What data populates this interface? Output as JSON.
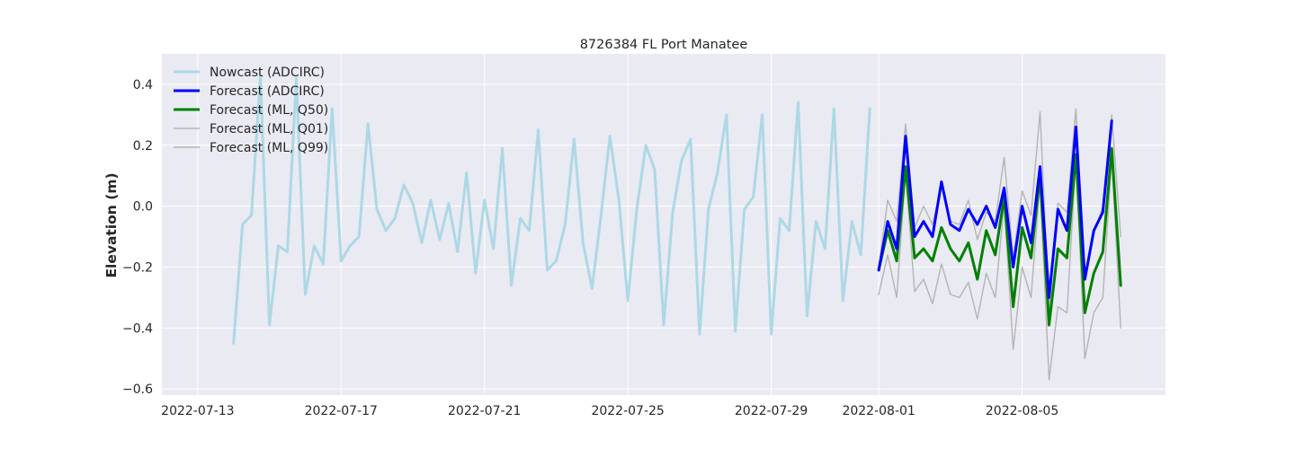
{
  "chart_data": {
    "type": "line",
    "title": "8726384 FL Port Manatee",
    "xlabel": "",
    "ylabel": "Elevation (m)",
    "xlim": [
      "2022-07-12T00:00",
      "2022-08-09T00:00"
    ],
    "ylim": [
      -0.62,
      0.5
    ],
    "grid": true,
    "legend_position": "top-left",
    "x_ticks": [
      "2022-07-13",
      "2022-07-17",
      "2022-07-21",
      "2022-07-25",
      "2022-07-29",
      "2022-08-01",
      "2022-08-05"
    ],
    "y_ticks": [
      0.4,
      0.2,
      0.0,
      -0.2,
      -0.4,
      -0.6
    ],
    "y_tick_labels": [
      "0.4",
      "0.2",
      "0.0",
      "−0.2",
      "−0.4",
      "−0.6"
    ],
    "colors": {
      "plot_background": "#eaeaf2",
      "grid": "#ffffff",
      "nowcast": "#add8e6",
      "forecast_adcirc": "#0000ff",
      "forecast_ml_q50": "#008000",
      "forecast_ml_quantiles": "#b4b4b4"
    },
    "series": [
      {
        "name": "Nowcast (ADCIRC)",
        "color": "#add8e6",
        "width": 3,
        "start": "2022-07-14T00:00",
        "step_hours": 6,
        "values": [
          -0.45,
          -0.06,
          -0.03,
          0.43,
          -0.39,
          -0.13,
          -0.15,
          0.42,
          -0.29,
          -0.13,
          -0.19,
          0.32,
          -0.18,
          -0.13,
          -0.1,
          0.27,
          -0.01,
          -0.08,
          -0.04,
          0.07,
          0.01,
          -0.12,
          0.02,
          -0.11,
          0.01,
          -0.15,
          0.11,
          -0.22,
          0.02,
          -0.14,
          0.19,
          -0.26,
          -0.04,
          -0.08,
          0.25,
          -0.21,
          -0.18,
          -0.06,
          0.22,
          -0.12,
          -0.27,
          -0.03,
          0.23,
          0.02,
          -0.31,
          -0.01,
          0.2,
          0.12,
          -0.39,
          -0.02,
          0.15,
          0.22,
          -0.42,
          -0.01,
          0.11,
          0.3,
          -0.41,
          -0.01,
          0.03,
          0.3,
          -0.42,
          -0.04,
          -0.08,
          0.34,
          -0.36,
          -0.05,
          -0.14,
          0.32,
          -0.31,
          -0.05,
          -0.16,
          0.32
        ]
      },
      {
        "name": "Forecast (ADCIRC)",
        "color": "#0000ff",
        "width": 3,
        "start": "2022-08-01T00:00",
        "step_hours": 6,
        "values": [
          -0.21,
          -0.05,
          -0.14,
          0.23,
          -0.1,
          -0.05,
          -0.1,
          0.08,
          -0.06,
          -0.08,
          -0.01,
          -0.06,
          0.0,
          -0.07,
          0.06,
          -0.2,
          0.0,
          -0.12,
          0.13,
          -0.3,
          -0.01,
          -0.08,
          0.26,
          -0.24,
          -0.08,
          -0.02,
          0.28
        ]
      },
      {
        "name": "Forecast (ML, Q50)",
        "color": "#008000",
        "width": 3,
        "start": "2022-08-01T00:00",
        "step_hours": 6,
        "values": [
          -0.21,
          -0.08,
          -0.18,
          0.13,
          -0.17,
          -0.14,
          -0.18,
          -0.07,
          -0.14,
          -0.18,
          -0.12,
          -0.24,
          -0.08,
          -0.16,
          0.03,
          -0.33,
          -0.07,
          -0.17,
          0.1,
          -0.39,
          -0.14,
          -0.17,
          0.17,
          -0.35,
          -0.22,
          -0.15,
          0.19,
          -0.26
        ]
      },
      {
        "name": "Forecast (ML, Q01)",
        "color": "#b4b4b4",
        "width": 1.4,
        "start": "2022-08-01T00:00",
        "step_hours": 6,
        "values": [
          -0.29,
          -0.16,
          -0.3,
          0.11,
          -0.28,
          -0.24,
          -0.32,
          -0.19,
          -0.29,
          -0.3,
          -0.25,
          -0.37,
          -0.22,
          -0.3,
          0.01,
          -0.47,
          -0.2,
          -0.3,
          0.08,
          -0.57,
          -0.33,
          -0.35,
          0.16,
          -0.5,
          -0.35,
          -0.3,
          0.16,
          -0.4
        ]
      },
      {
        "name": "Forecast (ML, Q99)",
        "color": "#b4b4b4",
        "width": 1.4,
        "start": "2022-08-01T00:00",
        "step_hours": 6,
        "values": [
          -0.2,
          0.02,
          -0.05,
          0.27,
          -0.07,
          0.0,
          -0.06,
          0.07,
          -0.05,
          -0.06,
          0.02,
          -0.11,
          -0.02,
          -0.05,
          0.16,
          -0.17,
          0.05,
          -0.03,
          0.31,
          -0.34,
          0.01,
          -0.02,
          0.32,
          -0.23,
          -0.09,
          0.0,
          0.3,
          -0.1
        ]
      }
    ]
  }
}
